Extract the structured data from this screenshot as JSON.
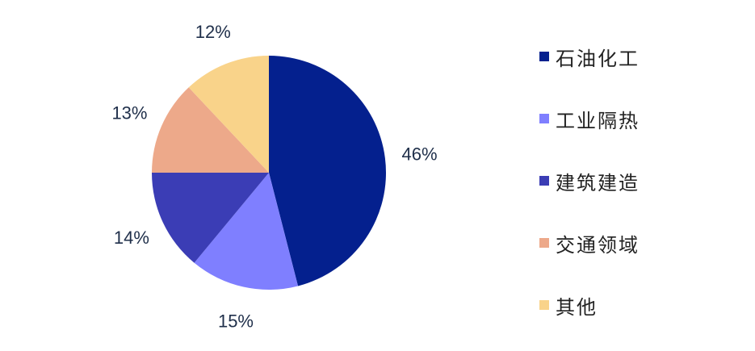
{
  "chart_data": {
    "type": "pie",
    "categories": [
      "石油化工",
      "工业隔热",
      "建筑建造",
      "交通领域",
      "其他"
    ],
    "values": [
      46,
      15,
      14,
      13,
      12
    ],
    "labels": [
      "46%",
      "15%",
      "14%",
      "13%",
      "12%"
    ],
    "colors": [
      "#04208E",
      "#7F7FFF",
      "#3B3DB5",
      "#EDA98A",
      "#F9D38A"
    ],
    "legend_position": "right"
  }
}
